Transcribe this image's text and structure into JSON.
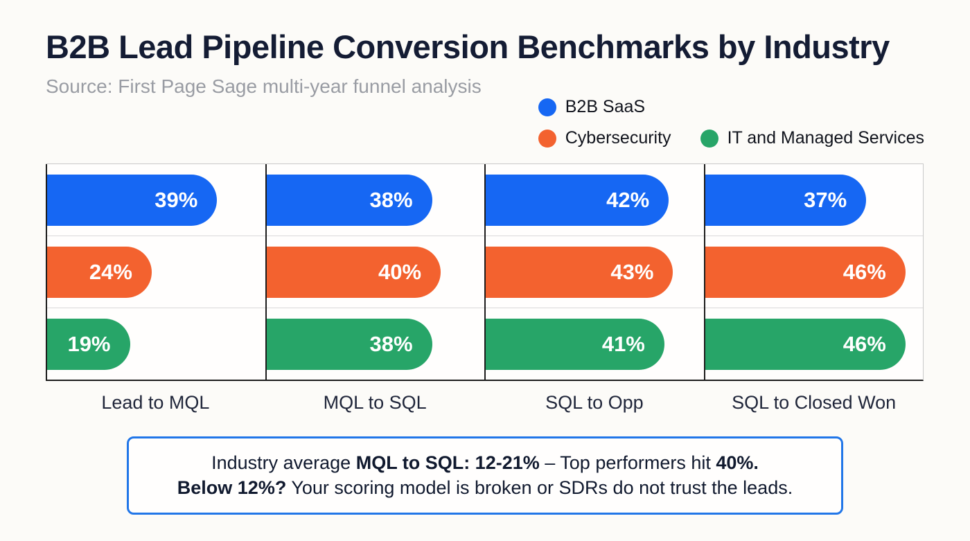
{
  "header": {
    "title": "B2B Lead Pipeline Conversion Benchmarks by Industry",
    "subtitle": "Source: First Page Sage multi-year funnel analysis"
  },
  "legend": {
    "items": [
      {
        "label": "B2B SaaS",
        "color": "#1667f3"
      },
      {
        "label": "Cybersecurity",
        "color": "#f3622f"
      },
      {
        "label": "IT and Managed Services",
        "color": "#27a568"
      }
    ]
  },
  "chart_data": {
    "type": "bar",
    "orientation": "horizontal",
    "unit": "%",
    "categories": [
      "Lead to MQL",
      "MQL to SQL",
      "SQL to Opp",
      "SQL to Closed Won"
    ],
    "series": [
      {
        "name": "B2B SaaS",
        "color": "#1667f3",
        "values": [
          39,
          38,
          42,
          37
        ]
      },
      {
        "name": "Cybersecurity",
        "color": "#f3622f",
        "values": [
          24,
          40,
          43,
          46
        ]
      },
      {
        "name": "IT and Managed Services",
        "color": "#27a568",
        "values": [
          19,
          38,
          41,
          46
        ]
      }
    ],
    "xlim": [
      0,
      50
    ],
    "legend_position": "top-right",
    "grid": "on"
  },
  "note": {
    "border_color": "#2176e8",
    "line1": [
      {
        "text": "Industry average ",
        "bold": false
      },
      {
        "text": "MQL to SQL: 12-21%",
        "bold": true
      },
      {
        "text": " – Top performers hit ",
        "bold": false
      },
      {
        "text": "40%.",
        "bold": true
      }
    ],
    "line2": [
      {
        "text": "Below 12%?",
        "bold": true
      },
      {
        "text": " Your scoring model is broken or SDRs do not trust the leads.",
        "bold": false
      }
    ]
  }
}
